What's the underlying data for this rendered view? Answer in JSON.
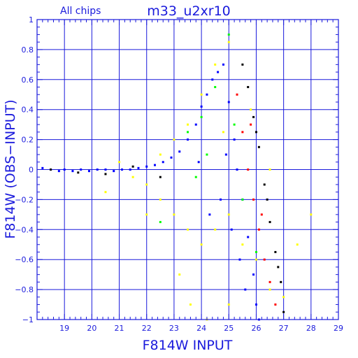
{
  "chart_data": {
    "type": "scatter",
    "title": "m33_u2xr10",
    "subtitle": "All chips",
    "xlabel": "F814W INPUT",
    "ylabel": "F814W (OBS−INPUT)",
    "xlim": [
      18,
      29
    ],
    "ylim": [
      -1,
      1
    ],
    "xticks": [
      19,
      20,
      21,
      22,
      23,
      24,
      25,
      26,
      27,
      28,
      29
    ],
    "yticks": [
      -1,
      -0.8,
      -0.6,
      -0.4,
      -0.2,
      0,
      0.2,
      0.4,
      0.6,
      0.8,
      1
    ],
    "ytick_labels": [
      "−1",
      "−0.8",
      "−0.6",
      "−0.4",
      "−0.2",
      "0",
      "0.2",
      "0.4",
      "0.6",
      "0.8",
      "1"
    ],
    "grid": true,
    "series": [
      {
        "color": "#0000ff",
        "points": [
          [
            18.2,
            0.01
          ],
          [
            18.5,
            0.0
          ],
          [
            18.8,
            -0.01
          ],
          [
            19.0,
            0.0
          ],
          [
            19.3,
            -0.01
          ],
          [
            19.6,
            0.0
          ],
          [
            19.9,
            -0.01
          ],
          [
            20.2,
            0.0
          ],
          [
            20.5,
            0.0
          ],
          [
            20.8,
            -0.01
          ],
          [
            21.1,
            0.0
          ],
          [
            21.4,
            0.0
          ],
          [
            21.7,
            0.01
          ],
          [
            22.0,
            0.02
          ],
          [
            22.3,
            0.03
          ],
          [
            22.6,
            0.05
          ],
          [
            22.9,
            0.08
          ],
          [
            23.2,
            0.12
          ],
          [
            23.5,
            0.2
          ],
          [
            23.8,
            0.3
          ],
          [
            24.0,
            0.42
          ],
          [
            24.2,
            0.5
          ],
          [
            24.4,
            0.6
          ],
          [
            24.6,
            0.65
          ],
          [
            24.8,
            0.7
          ],
          [
            25.0,
            0.45
          ],
          [
            25.2,
            0.2
          ],
          [
            25.3,
            0.0
          ],
          [
            25.5,
            -0.2
          ],
          [
            25.7,
            -0.45
          ],
          [
            25.9,
            -0.7
          ],
          [
            26.0,
            -0.9
          ],
          [
            26.1,
            -1.0
          ],
          [
            24.9,
            0.1
          ],
          [
            24.7,
            -0.2
          ],
          [
            25.1,
            -0.4
          ],
          [
            25.4,
            -0.6
          ],
          [
            25.6,
            -0.8
          ],
          [
            24.3,
            -0.3
          ],
          [
            23.9,
            0.05
          ]
        ]
      },
      {
        "color": "#ffff00",
        "points": [
          [
            21.5,
            -0.05
          ],
          [
            22.0,
            -0.1
          ],
          [
            22.5,
            -0.2
          ],
          [
            23.0,
            -0.3
          ],
          [
            23.5,
            -0.4
          ],
          [
            24.0,
            -0.5
          ],
          [
            24.5,
            -0.4
          ],
          [
            25.0,
            -0.3
          ],
          [
            25.5,
            -0.5
          ],
          [
            26.0,
            -0.6
          ],
          [
            26.5,
            -0.8
          ],
          [
            27.0,
            -0.85
          ],
          [
            22.5,
            0.1
          ],
          [
            23.0,
            0.2
          ],
          [
            23.5,
            0.3
          ],
          [
            24.0,
            0.5
          ],
          [
            24.5,
            0.7
          ],
          [
            25.0,
            0.85
          ],
          [
            23.2,
            -0.7
          ],
          [
            23.6,
            -0.9
          ],
          [
            24.2,
            -1.0
          ],
          [
            25.0,
            -0.9
          ],
          [
            20.5,
            -0.15
          ],
          [
            21.0,
            0.05
          ],
          [
            26.5,
            0.0
          ],
          [
            27.5,
            -0.5
          ],
          [
            28.0,
            -0.3
          ],
          [
            22.0,
            -0.3
          ],
          [
            24.8,
            0.25
          ],
          [
            25.8,
            0.4
          ]
        ]
      },
      {
        "color": "#00ff00",
        "points": [
          [
            23.5,
            0.25
          ],
          [
            24.0,
            0.35
          ],
          [
            24.5,
            0.55
          ],
          [
            25.0,
            0.9
          ],
          [
            25.2,
            0.3
          ],
          [
            24.2,
            0.1
          ],
          [
            23.8,
            -0.05
          ],
          [
            25.5,
            -0.2
          ],
          [
            26.0,
            -0.55
          ],
          [
            22.5,
            -0.35
          ]
        ]
      },
      {
        "color": "#ff0000",
        "points": [
          [
            25.3,
            0.5
          ],
          [
            25.5,
            0.25
          ],
          [
            25.7,
            0.0
          ],
          [
            25.9,
            -0.2
          ],
          [
            26.1,
            -0.4
          ],
          [
            26.3,
            -0.6
          ],
          [
            26.5,
            -0.75
          ],
          [
            26.7,
            -0.9
          ],
          [
            25.8,
            0.3
          ],
          [
            26.2,
            -0.3
          ]
        ]
      },
      {
        "color": "#000000",
        "points": [
          [
            25.5,
            0.7
          ],
          [
            25.7,
            0.55
          ],
          [
            25.9,
            0.35
          ],
          [
            26.1,
            0.15
          ],
          [
            26.3,
            -0.1
          ],
          [
            26.5,
            -0.35
          ],
          [
            26.7,
            -0.55
          ],
          [
            26.9,
            -0.75
          ],
          [
            27.0,
            -0.95
          ],
          [
            26.0,
            0.25
          ],
          [
            26.4,
            -0.2
          ],
          [
            26.8,
            -0.65
          ],
          [
            18.5,
            0.0
          ],
          [
            19.5,
            -0.02
          ],
          [
            20.5,
            -0.03
          ],
          [
            21.5,
            0.02
          ],
          [
            22.5,
            -0.05
          ]
        ]
      }
    ]
  }
}
